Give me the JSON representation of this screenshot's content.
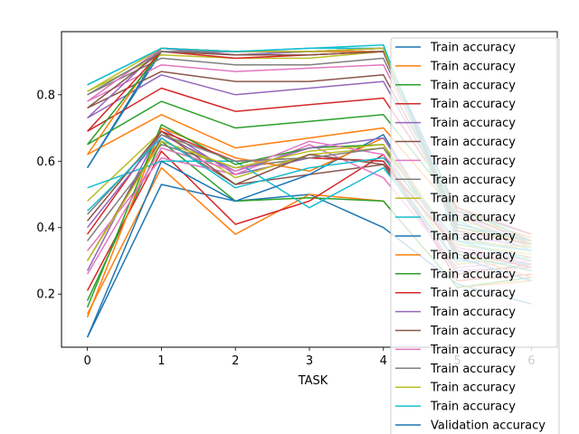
{
  "chart_data": {
    "type": "line",
    "title": "",
    "xlabel": "TASK",
    "ylabel": "",
    "xlim": [
      -0.35,
      6.35
    ],
    "ylim": [
      0.04,
      0.99
    ],
    "x_ticks": [
      0,
      1,
      2,
      3,
      4,
      5,
      6
    ],
    "y_ticks": [
      0.2,
      0.4,
      0.6,
      0.8
    ],
    "y_tick_labels": [
      "0.2",
      "0.4",
      "0.6",
      "0.8"
    ],
    "grid": false,
    "legend_placement": "right, overlapping plot, clipped at bottom",
    "x": [
      0,
      1,
      2,
      3,
      4,
      5,
      6
    ],
    "series": [
      {
        "name": "Train accuracy",
        "color": "#1f77b4",
        "values": [
          0.58,
          0.93,
          0.93,
          0.93,
          0.93,
          0.45,
          0.38
        ]
      },
      {
        "name": "Train accuracy",
        "color": "#ff7f0e",
        "values": [
          0.62,
          0.74,
          0.64,
          0.67,
          0.7,
          0.44,
          0.37
        ]
      },
      {
        "name": "Train accuracy",
        "color": "#2ca02c",
        "values": [
          0.65,
          0.78,
          0.7,
          0.72,
          0.74,
          0.46,
          0.36
        ]
      },
      {
        "name": "Train accuracy",
        "color": "#d62728",
        "values": [
          0.69,
          0.82,
          0.75,
          0.77,
          0.79,
          0.46,
          0.38
        ]
      },
      {
        "name": "Train accuracy",
        "color": "#9467bd",
        "values": [
          0.73,
          0.86,
          0.8,
          0.82,
          0.84,
          0.44,
          0.36
        ]
      },
      {
        "name": "Train accuracy",
        "color": "#8c564b",
        "values": [
          0.76,
          0.87,
          0.84,
          0.84,
          0.86,
          0.45,
          0.35
        ]
      },
      {
        "name": "Train accuracy",
        "color": "#e377c2",
        "values": [
          0.78,
          0.89,
          0.87,
          0.88,
          0.89,
          0.44,
          0.34
        ]
      },
      {
        "name": "Train accuracy",
        "color": "#7f7f7f",
        "values": [
          0.8,
          0.91,
          0.89,
          0.89,
          0.91,
          0.43,
          0.35
        ]
      },
      {
        "name": "Train accuracy",
        "color": "#bcbd22",
        "values": [
          0.81,
          0.92,
          0.91,
          0.91,
          0.93,
          0.43,
          0.34
        ]
      },
      {
        "name": "Train accuracy",
        "color": "#17becf",
        "values": [
          0.83,
          0.94,
          0.93,
          0.94,
          0.94,
          0.42,
          0.33
        ]
      },
      {
        "name": "Train accuracy",
        "color": "#1f77b4",
        "values": [
          0.58,
          0.94,
          0.92,
          0.93,
          0.94,
          0.41,
          0.36
        ]
      },
      {
        "name": "Train accuracy",
        "color": "#ff7f0e",
        "values": [
          0.62,
          0.94,
          0.93,
          0.93,
          0.93,
          0.4,
          0.35
        ]
      },
      {
        "name": "Train accuracy",
        "color": "#2ca02c",
        "values": [
          0.65,
          0.93,
          0.92,
          0.92,
          0.93,
          0.4,
          0.36
        ]
      },
      {
        "name": "Train accuracy",
        "color": "#d62728",
        "values": [
          0.69,
          0.93,
          0.91,
          0.92,
          0.93,
          0.39,
          0.35
        ]
      },
      {
        "name": "Train accuracy",
        "color": "#9467bd",
        "values": [
          0.73,
          0.94,
          0.92,
          0.93,
          0.94,
          0.38,
          0.34
        ]
      },
      {
        "name": "Train accuracy",
        "color": "#8c564b",
        "values": [
          0.76,
          0.93,
          0.92,
          0.92,
          0.93,
          0.39,
          0.35
        ]
      },
      {
        "name": "Train accuracy",
        "color": "#e377c2",
        "values": [
          0.78,
          0.94,
          0.93,
          0.93,
          0.94,
          0.37,
          0.33
        ]
      },
      {
        "name": "Train accuracy",
        "color": "#7f7f7f",
        "values": [
          0.8,
          0.93,
          0.93,
          0.93,
          0.94,
          0.37,
          0.33
        ]
      },
      {
        "name": "Train accuracy",
        "color": "#bcbd22",
        "values": [
          0.81,
          0.94,
          0.93,
          0.93,
          0.94,
          0.36,
          0.34
        ]
      },
      {
        "name": "Train accuracy",
        "color": "#17becf",
        "values": [
          0.83,
          0.94,
          0.93,
          0.94,
          0.95,
          0.36,
          0.33
        ]
      },
      {
        "name": "Validation accuracy",
        "color": "#1f77b4",
        "values": [
          0.07,
          0.53,
          0.48,
          0.5,
          0.4,
          0.23,
          0.17
        ]
      },
      {
        "name": "",
        "color": "#ff7f0e",
        "values": [
          0.14,
          0.58,
          0.38,
          0.5,
          0.48,
          0.22,
          0.24
        ]
      },
      {
        "name": "",
        "color": "#2ca02c",
        "values": [
          0.18,
          0.66,
          0.48,
          0.49,
          0.48,
          0.22,
          0.25
        ]
      },
      {
        "name": "",
        "color": "#d62728",
        "values": [
          0.21,
          0.63,
          0.41,
          0.48,
          0.62,
          0.24,
          0.26
        ]
      },
      {
        "name": "",
        "color": "#9467bd",
        "values": [
          0.27,
          0.7,
          0.56,
          0.61,
          0.6,
          0.27,
          0.28
        ]
      },
      {
        "name": "",
        "color": "#8c564b",
        "values": [
          0.3,
          0.67,
          0.53,
          0.56,
          0.59,
          0.26,
          0.29
        ]
      },
      {
        "name": "",
        "color": "#e377c2",
        "values": [
          0.33,
          0.61,
          0.56,
          0.65,
          0.55,
          0.28,
          0.3
        ]
      },
      {
        "name": "",
        "color": "#7f7f7f",
        "values": [
          0.36,
          0.65,
          0.58,
          0.61,
          0.6,
          0.29,
          0.31
        ]
      },
      {
        "name": "",
        "color": "#bcbd22",
        "values": [
          0.48,
          0.69,
          0.55,
          0.62,
          0.64,
          0.29,
          0.31
        ]
      },
      {
        "name": "",
        "color": "#17becf",
        "values": [
          0.52,
          0.6,
          0.6,
          0.46,
          0.58,
          0.3,
          0.29
        ]
      },
      {
        "name": "",
        "color": "#1f77b4",
        "values": [
          0.07,
          0.6,
          0.48,
          0.56,
          0.68,
          0.31,
          0.24
        ]
      },
      {
        "name": "",
        "color": "#ff7f0e",
        "values": [
          0.13,
          0.7,
          0.61,
          0.57,
          0.67,
          0.32,
          0.25
        ]
      },
      {
        "name": "",
        "color": "#2ca02c",
        "values": [
          0.16,
          0.71,
          0.59,
          0.64,
          0.65,
          0.32,
          0.27
        ]
      },
      {
        "name": "",
        "color": "#d62728",
        "values": [
          0.38,
          0.69,
          0.6,
          0.61,
          0.6,
          0.33,
          0.28
        ]
      },
      {
        "name": "",
        "color": "#9467bd",
        "values": [
          0.4,
          0.68,
          0.57,
          0.64,
          0.67,
          0.33,
          0.29
        ]
      },
      {
        "name": "",
        "color": "#8c564b",
        "values": [
          0.42,
          0.69,
          0.53,
          0.62,
          0.59,
          0.34,
          0.3
        ]
      },
      {
        "name": "",
        "color": "#e377c2",
        "values": [
          0.26,
          0.64,
          0.57,
          0.66,
          0.62,
          0.34,
          0.3
        ]
      },
      {
        "name": "",
        "color": "#7f7f7f",
        "values": [
          0.44,
          0.68,
          0.6,
          0.61,
          0.64,
          0.35,
          0.31
        ]
      },
      {
        "name": "",
        "color": "#bcbd22",
        "values": [
          0.3,
          0.66,
          0.58,
          0.63,
          0.65,
          0.35,
          0.32
        ]
      },
      {
        "name": "",
        "color": "#17becf",
        "values": [
          0.45,
          0.67,
          0.52,
          0.58,
          0.61,
          0.36,
          0.3
        ]
      }
    ]
  }
}
